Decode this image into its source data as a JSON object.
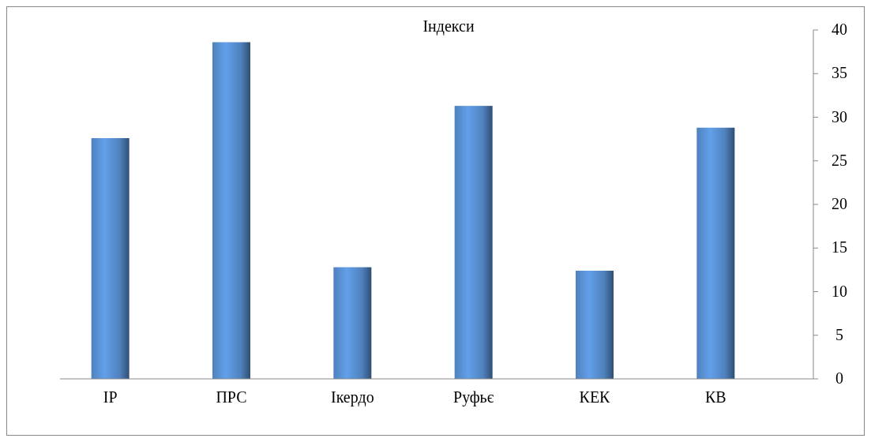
{
  "chart_data": {
    "type": "bar",
    "title": "Індекси",
    "categories": [
      "ІР",
      "ПРС",
      "Ікердо",
      "Руфьє",
      "КЕК",
      "КВ"
    ],
    "values": [
      27.6,
      38.6,
      12.8,
      31.3,
      12.4,
      28.8
    ],
    "color": "#4f81bd",
    "ylim": [
      0,
      40
    ],
    "yticks": [
      0,
      5,
      10,
      15,
      20,
      25,
      30,
      35,
      40
    ],
    "grid": false
  }
}
